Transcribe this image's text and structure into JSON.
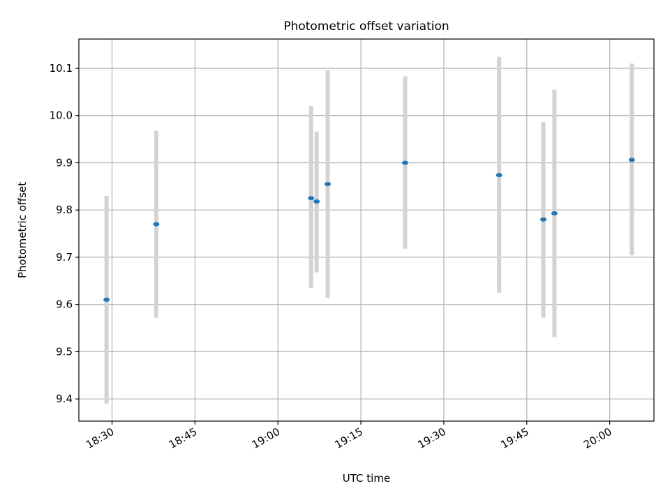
{
  "chart_data": {
    "type": "scatter",
    "title": "Photometric offset variation",
    "xlabel": "UTC time",
    "ylabel": "Photometric offset",
    "x_ticks": [
      "18:30",
      "18:45",
      "19:00",
      "19:15",
      "19:30",
      "19:45",
      "20:00"
    ],
    "y_ticks": [
      "9.4",
      "9.5",
      "9.6",
      "9.7",
      "9.8",
      "9.9",
      "10.0",
      "10.1"
    ],
    "xlim": [
      "18:24",
      "20:08"
    ],
    "ylim": [
      9.353,
      10.162
    ],
    "grid": true,
    "point_color": "#1f77b4",
    "errorbar_color": "#d3d3d3",
    "points": [
      {
        "x": "18:29",
        "y": 9.61,
        "yerr_low": 9.39,
        "yerr_high": 9.83
      },
      {
        "x": "18:38",
        "y": 9.77,
        "yerr_low": 9.572,
        "yerr_high": 9.968
      },
      {
        "x": "19:06",
        "y": 9.825,
        "yerr_low": 9.635,
        "yerr_high": 10.02
      },
      {
        "x": "19:07",
        "y": 9.818,
        "yerr_low": 9.668,
        "yerr_high": 9.966
      },
      {
        "x": "19:09",
        "y": 9.855,
        "yerr_low": 9.614,
        "yerr_high": 10.096
      },
      {
        "x": "19:23",
        "y": 9.9,
        "yerr_low": 9.718,
        "yerr_high": 10.083
      },
      {
        "x": "19:40",
        "y": 9.874,
        "yerr_low": 9.625,
        "yerr_high": 10.124
      },
      {
        "x": "19:48",
        "y": 9.78,
        "yerr_low": 9.572,
        "yerr_high": 9.986
      },
      {
        "x": "19:50",
        "y": 9.793,
        "yerr_low": 9.531,
        "yerr_high": 10.055
      },
      {
        "x": "20:04",
        "y": 9.906,
        "yerr_low": 9.704,
        "yerr_high": 10.11
      }
    ]
  }
}
